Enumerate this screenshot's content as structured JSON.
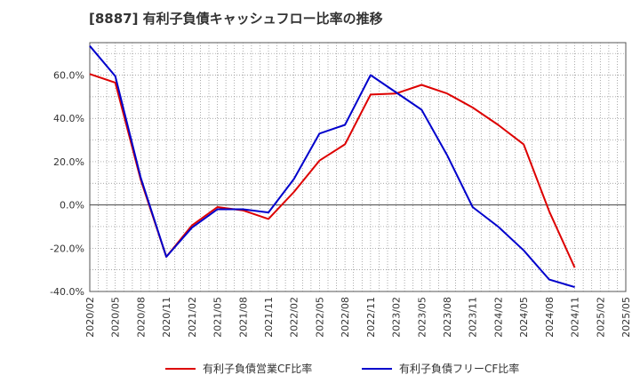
{
  "chart_data": {
    "type": "line",
    "title": "[8887]  有利子負債キャッシュフロー比率の推移",
    "xlabel": "",
    "ylabel": "",
    "categories": [
      "2020/02",
      "2020/05",
      "2020/08",
      "2020/11",
      "2021/02",
      "2021/05",
      "2021/08",
      "2021/11",
      "2022/02",
      "2022/05",
      "2022/08",
      "2022/11",
      "2023/02",
      "2023/05",
      "2023/08",
      "2023/11",
      "2024/02",
      "2024/05",
      "2024/08",
      "2024/11",
      "2025/02",
      "2025/05"
    ],
    "ylim": [
      -40,
      75
    ],
    "yticks": [
      60,
      40,
      20,
      0,
      -20,
      -40
    ],
    "ytick_labels": [
      "60.0%",
      "40.0%",
      "20.0%",
      "0.0%",
      "-20.0%",
      "-40.0%"
    ],
    "grid": true,
    "legend_position": "bottom",
    "series": [
      {
        "name": "有利子負債営業CF比率",
        "color": "#dd0000",
        "points": [
          [
            "2020/02",
            60.5
          ],
          [
            "2020/05",
            56.5
          ],
          [
            "2020/08",
            11.5
          ],
          [
            "2020/11",
            -24
          ],
          [
            "2021/02",
            -9.5
          ],
          [
            "2021/05",
            -1
          ],
          [
            "2021/08",
            -2.5
          ],
          [
            "2021/11",
            -6.5
          ],
          [
            "2022/02",
            6
          ],
          [
            "2022/05",
            20.5
          ],
          [
            "2022/08",
            28
          ],
          [
            "2022/11",
            51
          ],
          [
            "2023/02",
            51.5
          ],
          [
            "2023/05",
            55.5
          ],
          [
            "2023/08",
            51.5
          ],
          [
            "2023/11",
            45
          ],
          [
            "2024/02",
            37
          ],
          [
            "2024/05",
            28
          ],
          [
            "2024/08",
            -3
          ],
          [
            "2024/11",
            -29
          ]
        ]
      },
      {
        "name": "有利子負債フリーCF比率",
        "color": "#0000cc",
        "points": [
          [
            "2020/02",
            73.5
          ],
          [
            "2020/05",
            59.5
          ],
          [
            "2020/08",
            12.5
          ],
          [
            "2020/11",
            -24
          ],
          [
            "2021/02",
            -10.5
          ],
          [
            "2021/05",
            -2
          ],
          [
            "2021/08",
            -2
          ],
          [
            "2021/11",
            -3.5
          ],
          [
            "2022/02",
            12
          ],
          [
            "2022/05",
            33
          ],
          [
            "2022/08",
            37
          ],
          [
            "2022/11",
            60
          ],
          [
            "2023/02",
            52
          ],
          [
            "2023/05",
            44
          ],
          [
            "2023/08",
            23
          ],
          [
            "2023/11",
            -1
          ],
          [
            "2024/02",
            -10
          ],
          [
            "2024/05",
            -21
          ],
          [
            "2024/08",
            -34.5
          ],
          [
            "2024/11",
            -38
          ]
        ]
      }
    ]
  }
}
